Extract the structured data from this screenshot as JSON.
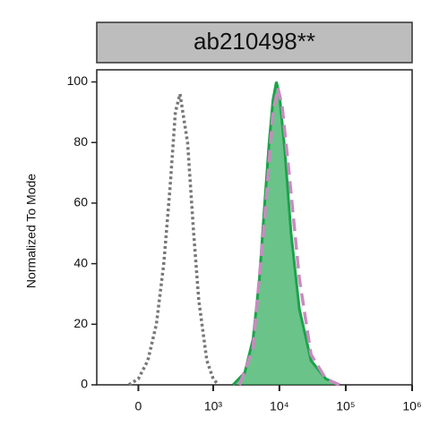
{
  "chart_data": {
    "type": "histogram-overlay",
    "title": "ab210498**",
    "y_label": "Normalized To Mode",
    "xlim": [
      -300,
      1000000
    ],
    "ylim": [
      0,
      104
    ],
    "xscale": "biexponential",
    "yticks": [
      0,
      20,
      40,
      60,
      80,
      100
    ],
    "xticks": [
      0,
      {
        "value": 1000,
        "label": "10³"
      },
      {
        "value": 10000,
        "label": "10⁴"
      },
      {
        "value": 100000,
        "label": "10⁵"
      },
      {
        "value": 1000000,
        "label": "10⁶"
      }
    ],
    "series": [
      {
        "color": "#777777",
        "style": "dotted",
        "filled": false,
        "x": [
          -50,
          0,
          50,
          100,
          150,
          200,
          250,
          300,
          400,
          500,
          600,
          800,
          1000,
          1200
        ],
        "values": [
          0,
          2,
          8,
          20,
          40,
          65,
          90,
          96,
          80,
          50,
          28,
          8,
          2,
          0
        ]
      },
      {
        "color": "#1aa34a",
        "style": "solid",
        "filled": true,
        "x": [
          2000,
          3000,
          4000,
          5000,
          6000,
          7000,
          8000,
          9000,
          10000,
          12000,
          15000,
          20000,
          30000,
          50000,
          80000
        ],
        "values": [
          0,
          4,
          15,
          35,
          60,
          80,
          94,
          100,
          96,
          78,
          50,
          25,
          8,
          2,
          0
        ]
      },
      {
        "color": "#c98ac0",
        "style": "dashed",
        "filled": false,
        "x": [
          2500,
          4000,
          6000,
          8000,
          9500,
          11000,
          14000,
          20000,
          30000,
          50000,
          80000
        ],
        "values": [
          0,
          12,
          55,
          90,
          98,
          92,
          70,
          35,
          10,
          2,
          0
        ]
      }
    ]
  }
}
